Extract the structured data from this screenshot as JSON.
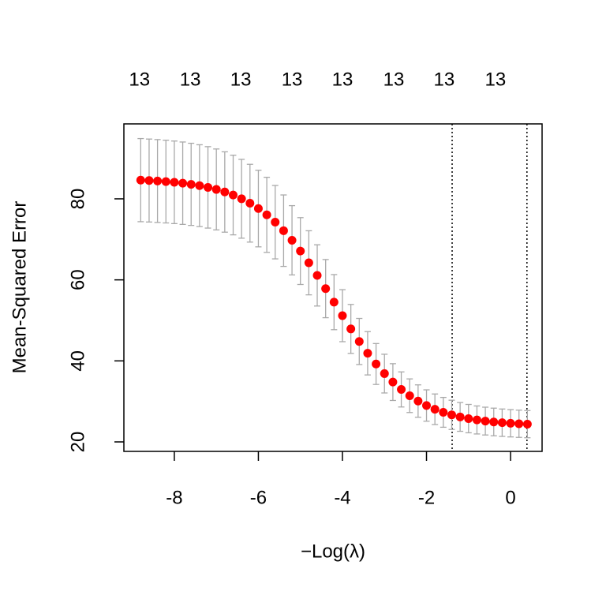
{
  "chart_data": {
    "type": "errorbar",
    "x_label": "−Log(λ)",
    "y_label": "Mean-Squared Error",
    "x": [
      -8.8,
      -8.6,
      -8.4,
      -8.2,
      -8.0,
      -7.8,
      -7.6,
      -7.4,
      -7.2,
      -7.0,
      -6.8,
      -6.6,
      -6.4,
      -6.2,
      -6.0,
      -5.8,
      -5.6,
      -5.4,
      -5.2,
      -5.0,
      -4.8,
      -4.6,
      -4.4,
      -4.2,
      -4.0,
      -3.8,
      -3.6,
      -3.4,
      -3.2,
      -3.0,
      -2.8,
      -2.6,
      -2.4,
      -2.2,
      -2.0,
      -1.8,
      -1.6,
      -1.4,
      -1.2,
      -1.0,
      -0.8,
      -0.6,
      -0.4,
      -0.2,
      0.0,
      0.2,
      0.4
    ],
    "values": [
      84.62,
      84.52,
      84.4,
      84.26,
      84.08,
      83.86,
      83.58,
      83.25,
      82.83,
      82.32,
      81.69,
      80.94,
      80.02,
      78.92,
      77.6,
      76.05,
      74.24,
      72.14,
      69.77,
      67.11,
      64.21,
      61.1,
      57.84,
      54.5,
      51.16,
      47.89,
      44.79,
      41.88,
      39.23,
      36.86,
      34.77,
      32.95,
      31.4,
      30.08,
      28.98,
      28.06,
      27.3,
      26.68,
      26.17,
      25.75,
      25.42,
      25.14,
      24.92,
      24.74,
      24.6,
      24.48,
      24.38
    ],
    "errors": [
      10.26,
      10.24,
      10.23,
      10.21,
      10.19,
      10.17,
      10.14,
      10.1,
      10.05,
      9.99,
      9.92,
      9.83,
      9.73,
      9.6,
      9.45,
      9.27,
      9.06,
      8.82,
      8.55,
      8.25,
      7.91,
      7.56,
      7.18,
      6.8,
      6.42,
      6.04,
      5.69,
      5.35,
      5.05,
      4.78,
      4.54,
      4.33,
      4.15,
      4.0,
      3.87,
      3.77,
      3.68,
      3.61,
      3.55,
      3.5,
      3.46,
      3.43,
      3.41,
      3.38,
      3.37,
      3.36,
      3.35
    ],
    "color": "#ff0000",
    "error_color": "#a9a9a9",
    "xlim": [
      -9.2,
      0.75
    ],
    "ylim": [
      17.66,
      98.5
    ],
    "xticks": [
      -8,
      -6,
      -4,
      -2,
      0
    ],
    "yticks": [
      20,
      40,
      60,
      80
    ],
    "top_ticks": [
      {
        "value": -8.83,
        "label": "13"
      },
      {
        "value": -7.62,
        "label": "13"
      },
      {
        "value": -6.42,
        "label": "13"
      },
      {
        "value": -5.2,
        "label": "13"
      },
      {
        "value": -4.0,
        "label": "13"
      },
      {
        "value": -2.78,
        "label": "13"
      },
      {
        "value": -1.58,
        "label": "13"
      },
      {
        "value": -0.36,
        "label": "13"
      }
    ],
    "vlines": [
      -1.39,
      0.39
    ]
  }
}
